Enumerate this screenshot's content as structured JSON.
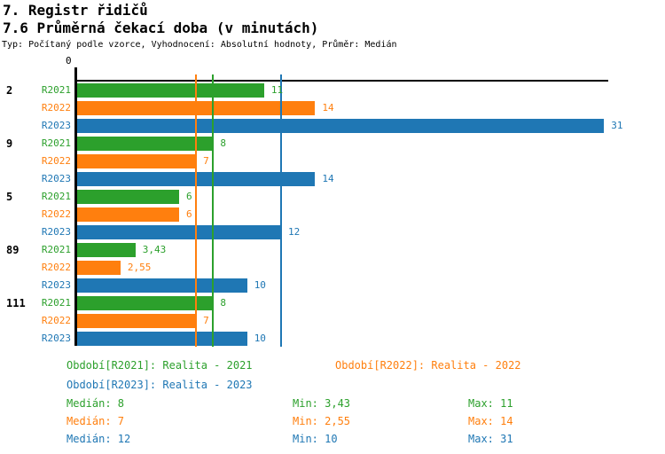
{
  "page": {
    "title1": "7. Registr řidičů",
    "title2": "7.6 Průměrná čekací doba (v minutách)",
    "subtitle": "Typ: Počítaný podle vzorce, Vyhodnocení: Absolutní hodnoty, Průměr: Medián"
  },
  "chart_data": {
    "type": "bar",
    "orientation": "horizontal",
    "title": "7.6 Průměrná čekací doba (v minutách)",
    "x_axis": {
      "origin_label": "0",
      "xlim": [
        0,
        31.3
      ],
      "gridlines": false
    },
    "series_colors": {
      "R2021": "#2ca02c",
      "R2022": "#ff7f0e",
      "R2023": "#1f77b4"
    },
    "median_lines": [
      {
        "series": "R2021",
        "value": 8
      },
      {
        "series": "R2022",
        "value": 7
      },
      {
        "series": "R2023",
        "value": 12
      }
    ],
    "categories": [
      "2",
      "9",
      "5",
      "89",
      "111"
    ],
    "groups": [
      {
        "category": "2",
        "bars": [
          {
            "series": "R2021",
            "value": 11,
            "label": "11"
          },
          {
            "series": "R2022",
            "value": 14,
            "label": "14"
          },
          {
            "series": "R2023",
            "value": 31,
            "label": "31"
          }
        ]
      },
      {
        "category": "9",
        "bars": [
          {
            "series": "R2021",
            "value": 8,
            "label": "8"
          },
          {
            "series": "R2022",
            "value": 7,
            "label": "7"
          },
          {
            "series": "R2023",
            "value": 14,
            "label": "14"
          }
        ]
      },
      {
        "category": "5",
        "bars": [
          {
            "series": "R2021",
            "value": 6,
            "label": "6"
          },
          {
            "series": "R2022",
            "value": 6,
            "label": "6"
          },
          {
            "series": "R2023",
            "value": 12,
            "label": "12"
          }
        ]
      },
      {
        "category": "89",
        "bars": [
          {
            "series": "R2021",
            "value": 3.43,
            "label": "3,43"
          },
          {
            "series": "R2022",
            "value": 2.55,
            "label": "2,55"
          },
          {
            "series": "R2023",
            "value": 10,
            "label": "10"
          }
        ]
      },
      {
        "category": "111",
        "bars": [
          {
            "series": "R2021",
            "value": 8,
            "label": "8"
          },
          {
            "series": "R2022",
            "value": 7,
            "label": "7"
          },
          {
            "series": "R2023",
            "value": 10,
            "label": "10"
          }
        ]
      }
    ]
  },
  "legend": {
    "items": [
      {
        "series": "R2021",
        "label": "Období[R2021]: Realita - 2021"
      },
      {
        "series": "R2022",
        "label": "Období[R2022]: Realita - 2022"
      },
      {
        "series": "R2023",
        "label": "Období[R2023]: Realita - 2023"
      }
    ]
  },
  "stats": {
    "rows": [
      {
        "series": "R2021",
        "median": "Medián: 8",
        "min": "Min: 3,43",
        "max": "Max: 11"
      },
      {
        "series": "R2022",
        "median": "Medián: 7",
        "min": "Min: 2,55",
        "max": "Max: 14"
      },
      {
        "series": "R2023",
        "median": "Medián: 12",
        "min": "Min: 10",
        "max": "Max: 31"
      }
    ]
  }
}
